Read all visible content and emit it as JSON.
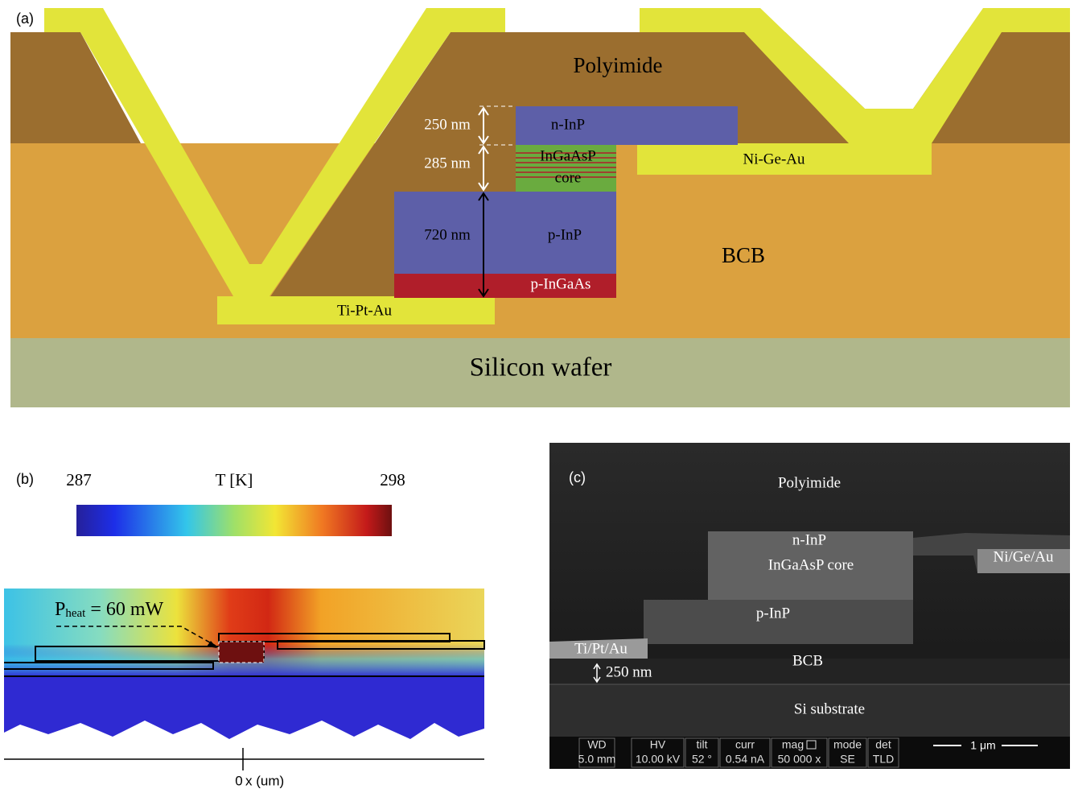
{
  "panel_a": {
    "label": "(a)",
    "layers": {
      "polyimide": "Polyimide",
      "n_inp": "n-InP",
      "ingaasp": "InGaAsP",
      "core": "core",
      "ni_ge_au": "Ni-Ge-Au",
      "p_inp": "p-InP",
      "bcb": "BCB",
      "p_ingaas": "p-InGaAs",
      "ti_pt_au": "Ti-Pt-Au",
      "silicon": "Silicon wafer"
    },
    "dimensions": [
      "250 nm",
      "285 nm",
      "720 nm"
    ]
  },
  "panel_b": {
    "label": "(b)",
    "colorbar": {
      "min": 287,
      "title": "T [K]",
      "max": 298
    },
    "annotation": {
      "symbol": "P",
      "subscript": "heat",
      "rest": " = 60 mW"
    },
    "x_axis": {
      "tick": "0",
      "label": "x (um)"
    }
  },
  "panel_c": {
    "label": "(c)",
    "labels": {
      "polyimide": "Polyimide",
      "n_inp": "n-InP",
      "core": "InGaAsP core",
      "ni_ge_au": "Ni/Ge/Au",
      "p_inp": "p-InP",
      "ti_pt_au": "Ti/Pt/Au",
      "dimension": "250 nm",
      "bcb": "BCB",
      "substrate": "Si substrate"
    },
    "info_bar": {
      "headers": [
        "WD",
        "HV",
        "tilt",
        "curr",
        "mag",
        "mode",
        "det"
      ],
      "values": [
        "5.0 mm",
        "10.00 kV",
        "52 °",
        "0.54 nA",
        "50 000 x",
        "SE",
        "TLD"
      ],
      "scale": "1 μm"
    }
  }
}
